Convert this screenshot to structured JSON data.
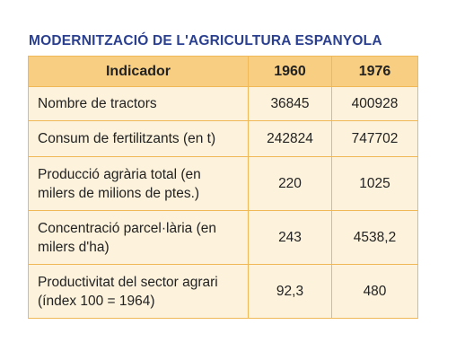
{
  "title": "MODERNITZACIÓ DE L'AGRICULTURA ESPANYOLA",
  "table": {
    "headers": [
      "Indicador",
      "1960",
      "1976"
    ],
    "rows": [
      {
        "indicator": "Nombre de tractors",
        "v1960": "36845",
        "v1976": "400928"
      },
      {
        "indicator": "Consum de fertilitzants (en t)",
        "v1960": "242824",
        "v1976": "747702"
      },
      {
        "indicator": "Producció agrària total (en milers de milions de ptes.)",
        "v1960": "220",
        "v1976": "1025"
      },
      {
        "indicator": "Concentració parcel·lària (en milers d'ha)",
        "v1960": "243",
        "v1976": "4538,2"
      },
      {
        "indicator": "Productivitat del sector agrari (índex 100 = 1964)",
        "v1960": "92,3",
        "v1976": "480"
      }
    ]
  },
  "colors": {
    "title": "#2a3f8f",
    "header_bg": "#f8cf82",
    "cell_bg": "#fdf2dc",
    "border": "#f1b857"
  }
}
